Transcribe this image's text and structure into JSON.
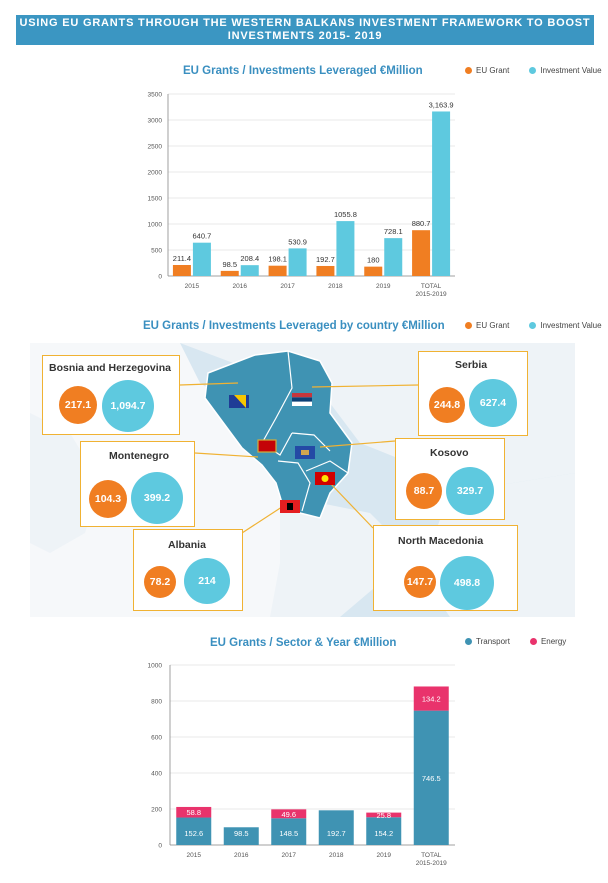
{
  "header": {
    "title": "USING EU GRANTS THROUGH THE WESTERN BALKANS INVESTMENT FRAMEWORK TO BOOST INVESTMENTS 2015- 2019"
  },
  "colors": {
    "eu_grant": "#f07e22",
    "investment": "#5ec9df",
    "transport": "#3f93b3",
    "energy": "#e9336c",
    "banner": "#3b96c2",
    "box_border": "#f0b233"
  },
  "chart_data": [
    {
      "type": "bar",
      "title": "EU Grants /  Investments Leveraged €Million",
      "categories": [
        "2015",
        "2016",
        "2017",
        "2018",
        "2019",
        "TOTAL 2015-2019"
      ],
      "series": [
        {
          "name": "EU Grant",
          "values": [
            211.4,
            98.5,
            198.1,
            192.7,
            180,
            880.7
          ],
          "labels": [
            "211.4",
            "98.5",
            "198.1",
            "192.7",
            "180",
            "880.7"
          ]
        },
        {
          "name": "Investment Value",
          "values": [
            640.7,
            208.4,
            530.9,
            1055.8,
            728.1,
            3163.9
          ],
          "labels": [
            "640.7",
            "208.4",
            "530.9",
            "1055.8",
            "728.1",
            "3,163.9"
          ]
        }
      ],
      "yticks": [
        0,
        500,
        1000,
        1500,
        2000,
        2500,
        3000,
        3500
      ],
      "ylim": [
        0,
        3500
      ]
    },
    {
      "type": "table",
      "title": "EU Grants / Investments Leveraged by country €Million",
      "series_names": [
        "EU Grant",
        "Investment Value"
      ],
      "countries": [
        {
          "name": "Bosnia and Herzegovina",
          "eu_grant": "217.1",
          "investment": "1,094.7"
        },
        {
          "name": "Serbia",
          "eu_grant": "244.8",
          "investment": "627.4"
        },
        {
          "name": "Montenegro",
          "eu_grant": "104.3",
          "investment": "399.2"
        },
        {
          "name": "Kosovo",
          "eu_grant": "88.7",
          "investment": "329.7"
        },
        {
          "name": "Albania",
          "eu_grant": "78.2",
          "investment": "214"
        },
        {
          "name": "North Macedonia",
          "eu_grant": "147.7",
          "investment": "498.8"
        }
      ]
    },
    {
      "type": "bar",
      "stacked": true,
      "title": "EU Grants / Sector & Year €Million",
      "categories": [
        "2015",
        "2016",
        "2017",
        "2018",
        "2019",
        "TOTAL 2015-2019"
      ],
      "series": [
        {
          "name": "Transport",
          "values": [
            152.6,
            98.5,
            148.5,
            192.7,
            154.2,
            746.5
          ]
        },
        {
          "name": "Energy",
          "values": [
            58.8,
            0,
            49.6,
            0,
            25.8,
            134.2
          ]
        }
      ],
      "yticks": [
        0,
        200,
        400,
        600,
        800,
        1000
      ],
      "ylim": [
        0,
        1000
      ]
    }
  ]
}
